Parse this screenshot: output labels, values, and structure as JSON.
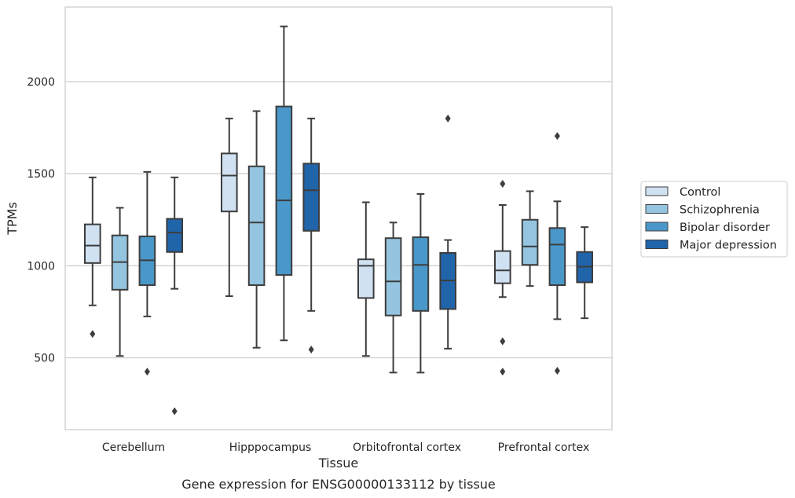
{
  "chart_data": {
    "type": "box",
    "title": "Gene expression for ENSG00000133112 by tissue",
    "xlabel": "Tissue",
    "ylabel": "TPMs",
    "categories": [
      "Cerebellum",
      "Hipppocampus",
      "Orbitofrontal cortex",
      "Prefrontal cortex"
    ],
    "ylim": [
      110,
      2405
    ],
    "yticks": [
      500,
      1000,
      1500,
      2000
    ],
    "grid": "horizontal",
    "legend_position": "right",
    "series": [
      {
        "name": "Control",
        "color": "#d0e1f2",
        "boxes": [
          {
            "whisker_low": 785,
            "q1": 1015,
            "median": 1110,
            "q3": 1225,
            "whisker_high": 1480,
            "outliers": [
              630
            ]
          },
          {
            "whisker_low": 835,
            "q1": 1295,
            "median": 1490,
            "q3": 1610,
            "whisker_high": 1800,
            "outliers": []
          },
          {
            "whisker_low": 510,
            "q1": 825,
            "median": 1000,
            "q3": 1035,
            "whisker_high": 1345,
            "outliers": []
          },
          {
            "whisker_low": 830,
            "q1": 905,
            "median": 975,
            "q3": 1080,
            "whisker_high": 1330,
            "outliers": [
              1445,
              590,
              425
            ]
          }
        ]
      },
      {
        "name": "Schizophrenia",
        "color": "#94c4df",
        "boxes": [
          {
            "whisker_low": 510,
            "q1": 870,
            "median": 1020,
            "q3": 1165,
            "whisker_high": 1315,
            "outliers": []
          },
          {
            "whisker_low": 555,
            "q1": 895,
            "median": 1235,
            "q3": 1540,
            "whisker_high": 1840,
            "outliers": []
          },
          {
            "whisker_low": 420,
            "q1": 730,
            "median": 915,
            "q3": 1150,
            "whisker_high": 1235,
            "outliers": []
          },
          {
            "whisker_low": 890,
            "q1": 1005,
            "median": 1105,
            "q3": 1250,
            "whisker_high": 1405,
            "outliers": []
          }
        ]
      },
      {
        "name": "Bipolar disorder",
        "color": "#4a98c9",
        "boxes": [
          {
            "whisker_low": 725,
            "q1": 895,
            "median": 1030,
            "q3": 1160,
            "whisker_high": 1510,
            "outliers": [
              425
            ]
          },
          {
            "whisker_low": 595,
            "q1": 950,
            "median": 1355,
            "q3": 1865,
            "whisker_high": 2300,
            "outliers": []
          },
          {
            "whisker_low": 420,
            "q1": 755,
            "median": 1005,
            "q3": 1155,
            "whisker_high": 1390,
            "outliers": []
          },
          {
            "whisker_low": 710,
            "q1": 895,
            "median": 1115,
            "q3": 1205,
            "whisker_high": 1350,
            "outliers": [
              1705,
              430
            ]
          }
        ]
      },
      {
        "name": "Major depression",
        "color": "#2064aa",
        "boxes": [
          {
            "whisker_low": 875,
            "q1": 1075,
            "median": 1180,
            "q3": 1255,
            "whisker_high": 1480,
            "outliers": [
              210
            ]
          },
          {
            "whisker_low": 755,
            "q1": 1190,
            "median": 1410,
            "q3": 1555,
            "whisker_high": 1800,
            "outliers": [
              545
            ]
          },
          {
            "whisker_low": 550,
            "q1": 765,
            "median": 920,
            "q3": 1070,
            "whisker_high": 1140,
            "outliers": [
              1800
            ]
          },
          {
            "whisker_low": 715,
            "q1": 910,
            "median": 995,
            "q3": 1075,
            "whisker_high": 1210,
            "outliers": []
          }
        ]
      }
    ]
  }
}
